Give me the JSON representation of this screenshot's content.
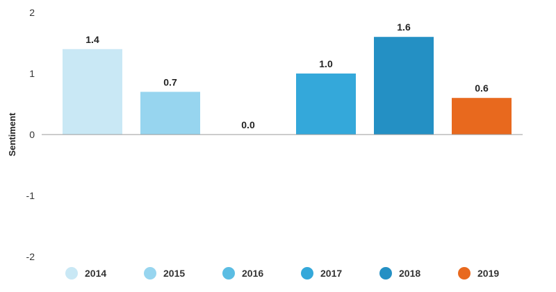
{
  "chart_data": {
    "type": "bar",
    "categories": [
      "2014",
      "2015",
      "2016",
      "2017",
      "2018",
      "2019"
    ],
    "values": [
      1.4,
      0.7,
      0.0,
      1.0,
      1.6,
      0.6
    ],
    "data_labels": [
      "1.4",
      "0.7",
      "0.0",
      "1.0",
      "1.6",
      "0.6"
    ],
    "colors": [
      "#c9e8f5",
      "#97d5ef",
      "#5bbde3",
      "#34a8da",
      "#2490c4",
      "#e8691e"
    ],
    "title": "",
    "xlabel": "",
    "ylabel": "Sentiment",
    "ylim": [
      -2,
      2
    ],
    "yticks": [
      2,
      1,
      0,
      -1,
      -2
    ],
    "ytick_labels": [
      "2",
      "1",
      "0",
      "-1",
      "-2"
    ],
    "grid": false,
    "legend": {
      "position": "bottom",
      "entries": [
        "2014",
        "2015",
        "2016",
        "2017",
        "2018",
        "2019"
      ]
    }
  }
}
